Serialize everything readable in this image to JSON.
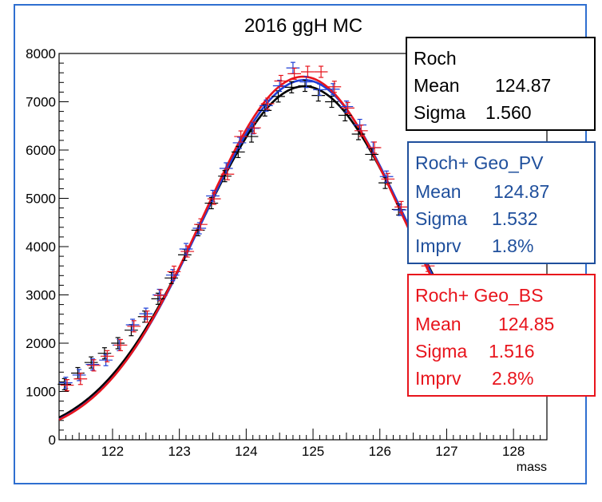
{
  "chart_data": {
    "type": "scatter",
    "title": "2016 ggH MC",
    "xlabel": "mass",
    "ylabel": "",
    "xlim": [
      121.2,
      128.5
    ],
    "ylim": [
      0,
      8000
    ],
    "x_ticks": [
      "122",
      "123",
      "124",
      "125",
      "126",
      "127",
      "128"
    ],
    "y_ticks": [
      "0",
      "1000",
      "2000",
      "3000",
      "4000",
      "5000",
      "6000",
      "7000",
      "8000"
    ],
    "grid": false,
    "series": [
      {
        "name": "Roch",
        "color": "#000000",
        "fit": {
          "mean": 124.87,
          "sigma": 1.56,
          "peak": 7320
        },
        "x": [
          121.3,
          121.5,
          121.7,
          121.9,
          122.1,
          122.3,
          122.5,
          122.7,
          122.9,
          123.1,
          123.3,
          123.5,
          123.7,
          123.9,
          124.1,
          124.3,
          124.5,
          124.7,
          124.9,
          125.1,
          125.3,
          125.5,
          125.7,
          125.9,
          126.1,
          126.3
        ],
        "y": [
          1150,
          1380,
          1600,
          1790,
          2000,
          2270,
          2550,
          2920,
          3350,
          3830,
          4340,
          4900,
          5460,
          5960,
          6280,
          6820,
          7110,
          7300,
          7330,
          7130,
          7000,
          6720,
          6330,
          5910,
          5320,
          4770
        ]
      },
      {
        "name": "Roch+ Geo_PV",
        "color": "#1f3fd6",
        "fit": {
          "mean": 124.87,
          "sigma": 1.532,
          "peak": 7450
        },
        "x": [
          121.3,
          121.5,
          121.7,
          121.9,
          122.1,
          122.3,
          122.5,
          122.7,
          122.9,
          123.1,
          123.3,
          123.5,
          123.7,
          123.9,
          124.1,
          124.3,
          124.5,
          124.7,
          124.9,
          125.1,
          125.3,
          125.5,
          125.7,
          125.9,
          126.1,
          126.3
        ],
        "y": [
          1180,
          1340,
          1560,
          1650,
          1960,
          2380,
          2610,
          3000,
          3410,
          3950,
          4380,
          5050,
          5620,
          6150,
          6450,
          6920,
          7330,
          7700,
          7410,
          7250,
          7260,
          6900,
          6520,
          6050,
          5450,
          4760
        ]
      },
      {
        "name": "Roch+ Geo_BS",
        "color": "#e8141c",
        "fit": {
          "mean": 124.85,
          "sigma": 1.516,
          "peak": 7520
        },
        "x": [
          121.3,
          121.5,
          121.7,
          121.9,
          122.1,
          122.3,
          122.5,
          122.7,
          122.9,
          123.1,
          123.3,
          123.5,
          123.7,
          123.9,
          124.1,
          124.3,
          124.5,
          124.7,
          124.9,
          125.1,
          125.3,
          125.5,
          125.7,
          125.9,
          126.1,
          126.3,
          126.5,
          126.7
        ],
        "y": [
          1130,
          1260,
          1540,
          1730,
          1960,
          2350,
          2550,
          2990,
          3480,
          3900,
          4460,
          4990,
          5500,
          6280,
          6460,
          6960,
          7430,
          7580,
          7620,
          7620,
          7310,
          6870,
          6400,
          6050,
          5400,
          4820,
          4190,
          3600
        ]
      }
    ],
    "stat_boxes": [
      {
        "title": "Roch",
        "color": "#000000",
        "rows": [
          {
            "label": "Mean",
            "value": "124.87"
          },
          {
            "label": "Sigma",
            "value": "1.560"
          }
        ]
      },
      {
        "title": "Roch+ Geo_PV",
        "color": "#1f4f9c",
        "rows": [
          {
            "label": "Mean",
            "value": "124.87"
          },
          {
            "label": "Sigma",
            "value": "1.532"
          },
          {
            "label": "Imprv",
            "value": "1.8%"
          }
        ]
      },
      {
        "title": "Roch+ Geo_BS",
        "color": "#e8141c",
        "rows": [
          {
            "label": "Mean",
            "value": "124.85"
          },
          {
            "label": "Sigma",
            "value": "1.516"
          },
          {
            "label": "Imprv",
            "value": "2.8%"
          }
        ]
      }
    ],
    "frame_color": "#2f6fd0"
  }
}
